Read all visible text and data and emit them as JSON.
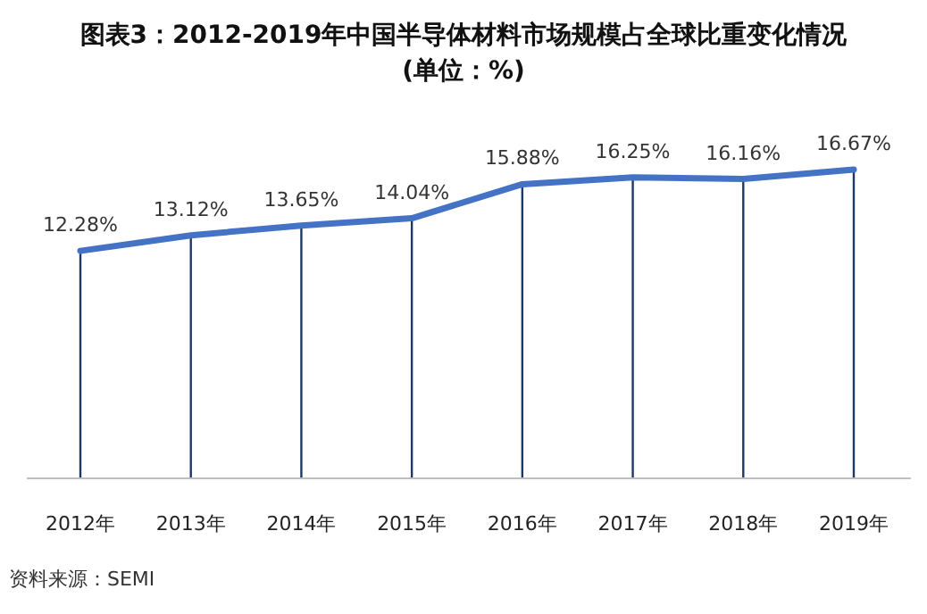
{
  "chart_data": {
    "type": "line",
    "title": "图表3：2012-2019年中国半导体材料市场规模占全球比重变化情况",
    "subtitle": "(单位：%)",
    "categories": [
      "2012年",
      "2013年",
      "2014年",
      "2015年",
      "2016年",
      "2017年",
      "2018年",
      "2019年"
    ],
    "values": [
      12.28,
      13.12,
      13.65,
      14.04,
      15.88,
      16.25,
      16.16,
      16.67
    ],
    "value_labels": [
      "12.28%",
      "13.12%",
      "13.65%",
      "14.04%",
      "15.88%",
      "16.25%",
      "16.16%",
      "16.67%"
    ],
    "color": "#4472c4",
    "marker": "none",
    "line_style": "solid",
    "grid": "x",
    "tick_labels": "x",
    "annotations": [
      "资料来源：SEMI"
    ]
  }
}
